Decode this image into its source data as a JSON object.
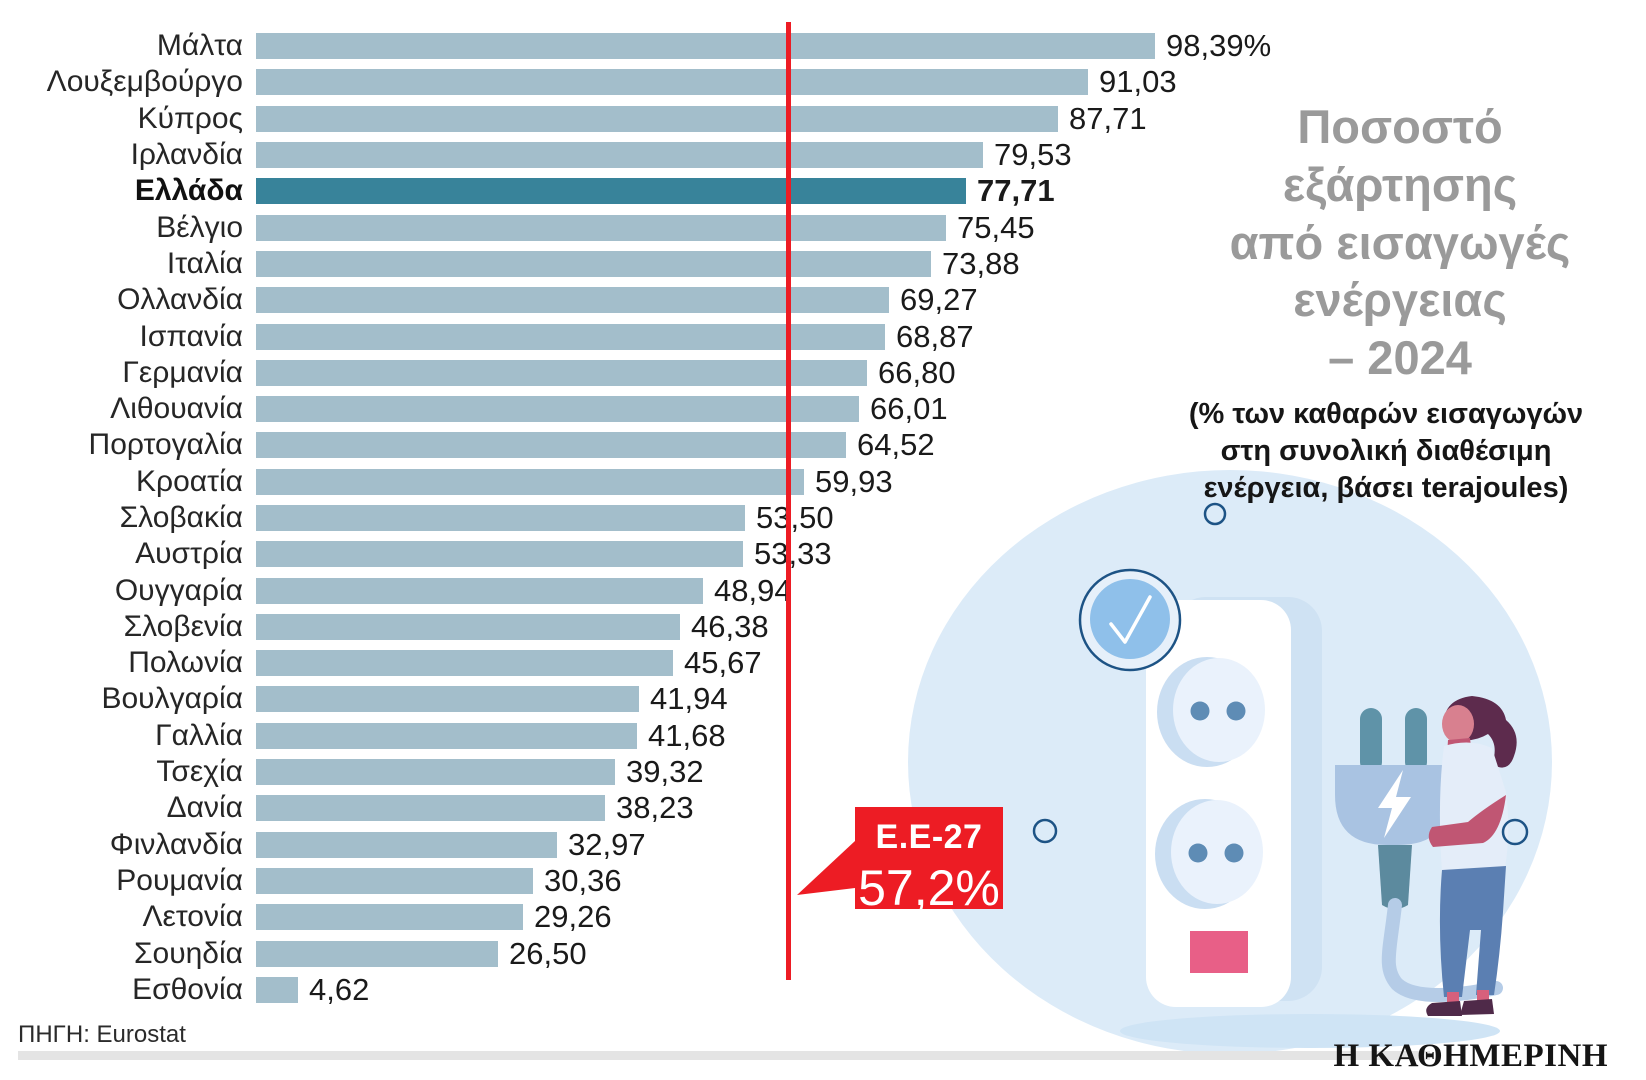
{
  "title": {
    "text": "Ποσοστό\nεξάρτησης\nαπό εισαγωγές\nενέργειας\n– 2024",
    "subtitle": "(% των καθαρών εισαγωγών\nστη συνολική διαθέσιμη\nενέργεια, βάσει terajoules)"
  },
  "chart_data": {
    "type": "bar",
    "orientation": "horizontal",
    "unit": "%",
    "xlim": [
      0,
      100
    ],
    "grid": false,
    "categories": [
      "Μάλτα",
      "Λουξεμβούργο",
      "Κύπρος",
      "Ιρλανδία",
      "Ελλάδα",
      "Βέλγιο",
      "Ιταλία",
      "Ολλανδία",
      "Ισπανία",
      "Γερμανία",
      "Λιθουανία",
      "Πορτογαλία",
      "Κροατία",
      "Σλοβακία",
      "Αυστρία",
      "Ουγγαρία",
      "Σλοβενία",
      "Πολωνία",
      "Βουλγαρία",
      "Γαλλία",
      "Τσεχία",
      "Δανία",
      "Φινλανδία",
      "Ρουμανία",
      "Λετονία",
      "Σουηδία",
      "Εσθονία"
    ],
    "values": [
      98.39,
      91.03,
      87.71,
      79.53,
      77.71,
      75.45,
      73.88,
      69.27,
      68.87,
      66.8,
      66.01,
      64.52,
      59.93,
      53.5,
      53.33,
      48.94,
      46.38,
      45.67,
      41.94,
      41.68,
      39.32,
      38.23,
      32.97,
      30.36,
      29.26,
      26.5,
      4.62
    ],
    "value_labels": [
      "98,39%",
      "91,03",
      "87,71",
      "79,53",
      "77,71",
      "75,45",
      "73,88",
      "69,27",
      "68,87",
      "66,80",
      "66,01",
      "64,52",
      "59,93",
      "53,50",
      "53,33",
      "48,94",
      "46,38",
      "45,67",
      "41,94",
      "41,68",
      "39,32",
      "38,23",
      "32,97",
      "30,36",
      "29,26",
      "26,50",
      "4,62"
    ],
    "highlight_category": "Ελλάδα",
    "reference_line": {
      "label": "Ε.Ε-27",
      "value": 57.2,
      "value_label": "57,2%"
    }
  },
  "callout": {
    "label": "Ε.Ε-27",
    "value": "57,2%"
  },
  "footer": {
    "source": "ΠΗΓΗ: Eurostat",
    "brand": "Η ΚΑΘΗΜΕΡΙΝΗ"
  },
  "colors": {
    "bar": "#a3becb",
    "bar_highlight": "#38839a",
    "reference_line": "#ed1c24",
    "callout_bg": "#ed1c24",
    "title_gray": "#9a9a9a",
    "blob": "#dcebf8",
    "plug_body": "#a9c3e2",
    "prong": "#5f93a8",
    "switch_pink": "#e85f87",
    "check_circle": "#8fc0ea",
    "ring_outline": "#1d5385"
  }
}
